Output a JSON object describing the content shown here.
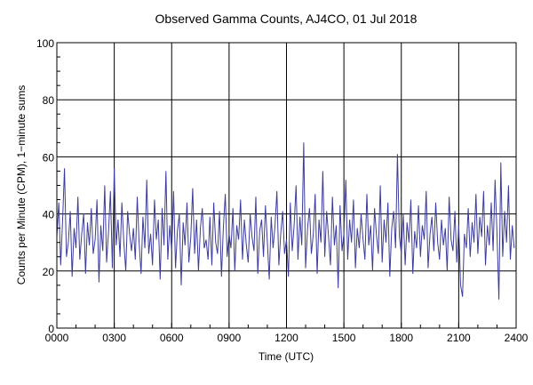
{
  "chart_data": {
    "type": "line",
    "title": "Observed Gamma Counts, AJ4CO, 01 Jul 2018",
    "xlabel": "Time (UTC)",
    "ylabel": "Counts per Minute (CPM), 1−minute sums",
    "xlim_minutes": [
      0,
      1440
    ],
    "ylim": [
      0,
      100
    ],
    "grid": true,
    "x_ticks": [
      "0000",
      "0300",
      "0600",
      "0900",
      "1200",
      "1500",
      "1800",
      "2100",
      "2400"
    ],
    "y_ticks": [
      "0",
      "20",
      "40",
      "60",
      "80",
      "100"
    ],
    "sample_interval_minutes": 6,
    "series": [
      {
        "name": "CPM",
        "color": "#3c3c9c",
        "values": [
          32,
          44,
          22,
          38,
          56,
          25,
          30,
          41,
          18,
          35,
          28,
          46,
          24,
          33,
          40,
          19,
          37,
          29,
          42,
          26,
          31,
          45,
          16,
          36,
          27,
          50,
          23,
          34,
          48,
          21,
          56,
          29,
          38,
          25,
          44,
          30,
          20,
          41,
          33,
          27,
          35,
          24,
          46,
          30,
          19,
          39,
          28,
          52,
          26,
          33,
          22,
          45,
          31,
          38,
          17,
          42,
          29,
          55,
          24,
          36,
          27,
          48,
          21,
          34,
          40,
          15,
          37,
          29,
          44,
          23,
          32,
          49,
          26,
          38,
          20,
          35,
          42,
          28,
          31,
          24,
          39,
          22,
          44,
          30,
          26,
          41,
          18,
          35,
          47,
          25,
          33,
          28,
          42,
          20,
          36,
          31,
          45,
          24,
          38,
          29,
          23,
          40,
          32,
          27,
          46,
          19,
          34,
          38,
          25,
          43,
          30,
          17,
          39,
          28,
          36,
          48,
          22,
          33,
          41,
          26,
          31,
          18,
          44,
          27,
          36,
          50,
          24,
          39,
          29,
          65,
          21,
          35,
          42,
          26,
          33,
          47,
          19,
          38,
          30,
          55,
          25,
          41,
          32,
          22,
          46,
          29,
          36,
          14,
          43,
          27,
          33,
          52,
          24,
          38,
          30,
          45,
          21,
          35,
          28,
          40,
          31,
          24,
          47,
          29,
          36,
          20,
          42,
          33,
          26,
          50,
          23,
          38,
          30,
          44,
          18,
          35,
          41,
          28,
          61,
          32,
          26,
          40,
          22,
          37,
          30,
          45,
          19,
          34,
          28,
          43,
          25,
          36,
          31,
          48,
          21,
          33,
          39,
          27,
          44,
          30,
          24,
          38,
          29,
          35,
          20,
          46,
          31,
          27,
          41,
          23,
          36,
          15,
          11,
          33,
          28,
          42,
          25,
          37,
          30,
          47,
          26,
          39,
          32,
          48,
          22,
          36,
          29,
          44,
          27,
          52,
          33,
          10,
          58,
          25,
          41,
          30,
          50,
          24,
          36,
          28
        ]
      }
    ]
  }
}
